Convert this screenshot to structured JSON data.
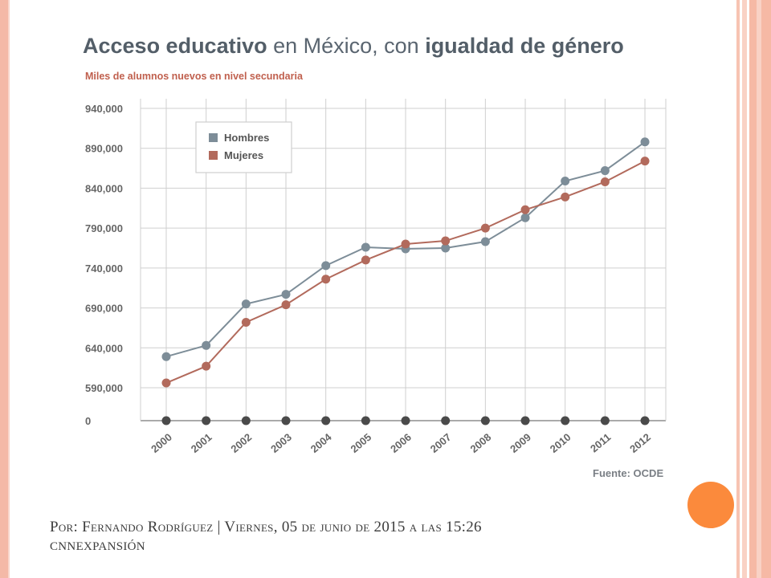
{
  "colors": {
    "hombres": "#7d8d98",
    "mujeres": "#b26a5c",
    "zero_markers": "#4a4a4a",
    "grid": "#cfcfcf",
    "accent": "#fb8a3c"
  },
  "title_part1": "Acceso educativo",
  "title_part2": " en México, con ",
  "title_part3": "igualdad de género",
  "subtitle": "Miles de alumnos nuevos en nivel secundaria",
  "source": "Fuente: OCDE",
  "byline_line1": "Por: Fernando Rodríguez | Viernes, 05 de junio de 2015 a las 15:26",
  "byline_line2": "cnnexpansión",
  "chart_data": {
    "type": "line",
    "categories": [
      "2000",
      "2001",
      "2002",
      "2003",
      "2004",
      "2005",
      "2006",
      "2007",
      "2008",
      "2009",
      "2010",
      "2011",
      "2012"
    ],
    "y_ticks": [
      "940,000",
      "890,000",
      "840,000",
      "790,000",
      "740,000",
      "690,000",
      "640,000",
      "590,000",
      "0"
    ],
    "y_tick_values": [
      940000,
      890000,
      840000,
      790000,
      740000,
      690000,
      640000,
      590000
    ],
    "ylim": [
      570000,
      940000
    ],
    "axis_break": "0 baseline shown below 590,000",
    "grid": true,
    "legend_position": "top-left",
    "series": [
      {
        "name": "Hombres",
        "values": [
          629000,
          643000,
          695000,
          707000,
          743000,
          766000,
          764000,
          765000,
          773000,
          803000,
          849000,
          862000,
          898000
        ]
      },
      {
        "name": "Mujeres",
        "values": [
          596000,
          617000,
          672000,
          694000,
          726000,
          750000,
          770000,
          774000,
          790000,
          813000,
          829000,
          848000,
          874000
        ]
      }
    ],
    "zero_series_values": [
      0,
      0,
      0,
      0,
      0,
      0,
      0,
      0,
      0,
      0,
      0,
      0,
      0
    ]
  }
}
